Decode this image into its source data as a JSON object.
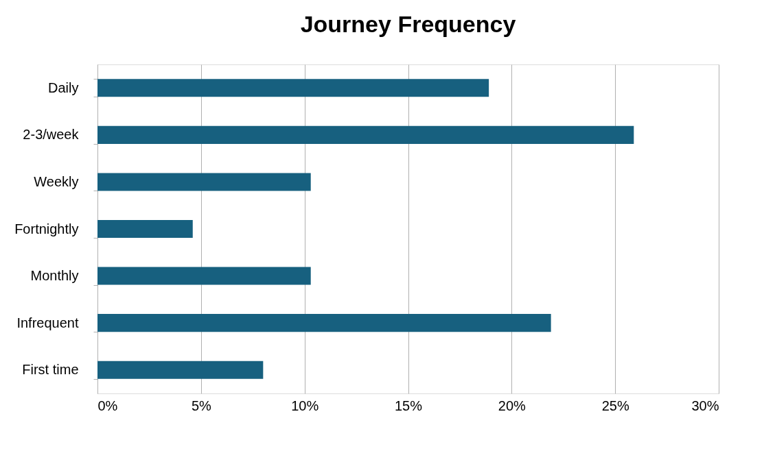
{
  "chart_data": {
    "type": "bar",
    "orientation": "horizontal",
    "title": "Journey Frequency",
    "categories": [
      "Daily",
      "2-3/week",
      "Weekly",
      "Fortnightly",
      "Monthly",
      "Infrequent",
      "First time"
    ],
    "values": [
      18.9,
      25.9,
      10.3,
      4.6,
      10.3,
      21.9,
      8.0
    ],
    "color": "#17607f",
    "xlim": [
      0,
      30
    ],
    "xticks": [
      {
        "value": 0,
        "label": "0%"
      },
      {
        "value": 5,
        "label": "5%"
      },
      {
        "value": 10,
        "label": "10%"
      },
      {
        "value": 15,
        "label": "15%"
      },
      {
        "value": 20,
        "label": "20%"
      },
      {
        "value": 25,
        "label": "25%"
      },
      {
        "value": 30,
        "label": "30%"
      }
    ],
    "grid": "x",
    "legend": false
  }
}
